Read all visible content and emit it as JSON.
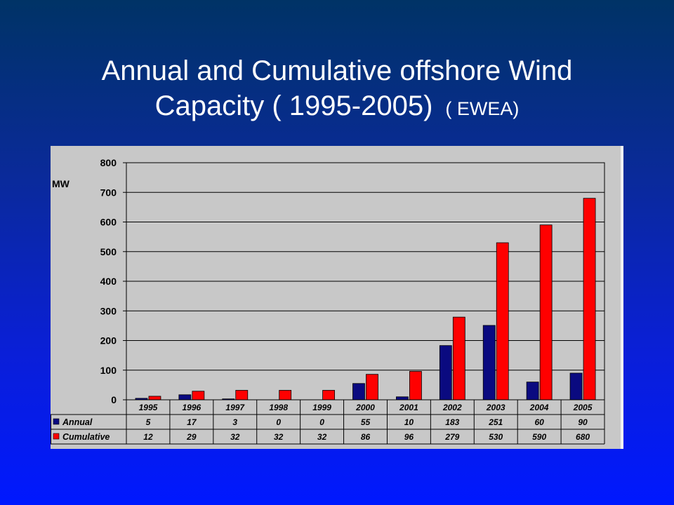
{
  "slide": {
    "title_line1": "Annual and Cumulative  offshore Wind",
    "title_line2": "Capacity ( 1995-2005)",
    "title_source": "( EWEA)"
  },
  "colors": {
    "annual": "#0a0a80",
    "cumulative": "#ff0000"
  },
  "chart_data": {
    "type": "bar",
    "title": "",
    "ylabel": "MW",
    "xlabel": "",
    "ylim": [
      0,
      800
    ],
    "yticks": [
      0,
      100,
      200,
      300,
      400,
      500,
      600,
      700,
      800
    ],
    "grid": true,
    "legend": "data-table-left",
    "categories": [
      "1995",
      "1996",
      "1997",
      "1998",
      "1999",
      "2000",
      "2001",
      "2002",
      "2003",
      "2004",
      "2005"
    ],
    "series": [
      {
        "name": "Annual",
        "values": [
          5,
          17,
          3,
          0,
          0,
          55,
          10,
          183,
          251,
          60,
          90
        ]
      },
      {
        "name": "Cumulative",
        "values": [
          12,
          29,
          32,
          32,
          32,
          86,
          96,
          279,
          530,
          590,
          680
        ]
      }
    ]
  }
}
